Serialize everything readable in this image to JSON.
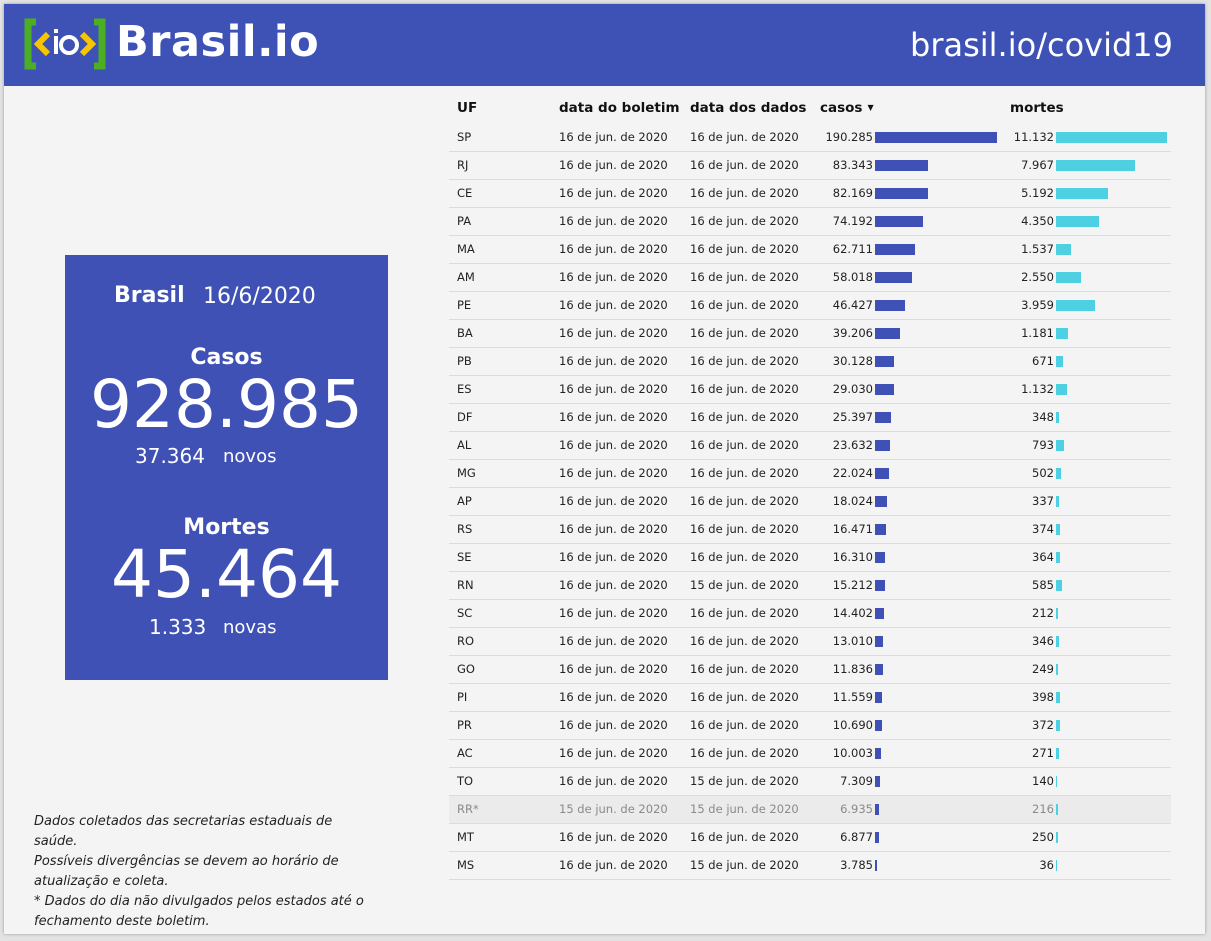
{
  "header": {
    "logo_text": "Brasil.io",
    "site_url": "brasil.io/covid19",
    "colors": {
      "brand": "#3e51b5",
      "logo_yellow": "#f7c600",
      "logo_green": "#4caf23"
    }
  },
  "summary": {
    "country": "Brasil",
    "date": "16/6/2020",
    "cases_label": "Casos",
    "cases_total": "928.985",
    "cases_new": "37.364",
    "cases_new_label": "novos",
    "deaths_label": "Mortes",
    "deaths_total": "45.464",
    "deaths_new": "1.333",
    "deaths_new_label": "novas"
  },
  "note": {
    "line1": "Dados coletados das secretarias estaduais de saúde.",
    "line2": "Possíveis divergências se devem ao horário de atualização e coleta.",
    "line3": "* Dados do dia não divulgados pelos estados até o fechamento deste boletim."
  },
  "table": {
    "headers": {
      "uf": "UF",
      "data_boletim": "data do boletim",
      "data_dados": "data dos dados",
      "casos": "casos",
      "mortes": "mortes"
    },
    "sort_indicator": "▼",
    "bar_colors": {
      "casos": "#3f51b5",
      "mortes": "#4dd0e1"
    },
    "rows": [
      {
        "uf": "SP",
        "boletim": "16 de jun. de 2020",
        "dados": "16 de jun. de 2020",
        "casos": "190.285",
        "mortes": "11.132",
        "casos_value": 190285,
        "mortes_value": 11132
      },
      {
        "uf": "RJ",
        "boletim": "16 de jun. de 2020",
        "dados": "16 de jun. de 2020",
        "casos": "83.343",
        "mortes": "7.967",
        "casos_value": 83343,
        "mortes_value": 7967
      },
      {
        "uf": "CE",
        "boletim": "16 de jun. de 2020",
        "dados": "16 de jun. de 2020",
        "casos": "82.169",
        "mortes": "5.192",
        "casos_value": 82169,
        "mortes_value": 5192
      },
      {
        "uf": "PA",
        "boletim": "16 de jun. de 2020",
        "dados": "16 de jun. de 2020",
        "casos": "74.192",
        "mortes": "4.350",
        "casos_value": 74192,
        "mortes_value": 4350
      },
      {
        "uf": "MA",
        "boletim": "16 de jun. de 2020",
        "dados": "16 de jun. de 2020",
        "casos": "62.711",
        "mortes": "1.537",
        "casos_value": 62711,
        "mortes_value": 1537
      },
      {
        "uf": "AM",
        "boletim": "16 de jun. de 2020",
        "dados": "16 de jun. de 2020",
        "casos": "58.018",
        "mortes": "2.550",
        "casos_value": 58018,
        "mortes_value": 2550
      },
      {
        "uf": "PE",
        "boletim": "16 de jun. de 2020",
        "dados": "16 de jun. de 2020",
        "casos": "46.427",
        "mortes": "3.959",
        "casos_value": 46427,
        "mortes_value": 3959
      },
      {
        "uf": "BA",
        "boletim": "16 de jun. de 2020",
        "dados": "16 de jun. de 2020",
        "casos": "39.206",
        "mortes": "1.181",
        "casos_value": 39206,
        "mortes_value": 1181
      },
      {
        "uf": "PB",
        "boletim": "16 de jun. de 2020",
        "dados": "16 de jun. de 2020",
        "casos": "30.128",
        "mortes": "671",
        "casos_value": 30128,
        "mortes_value": 671
      },
      {
        "uf": "ES",
        "boletim": "16 de jun. de 2020",
        "dados": "16 de jun. de 2020",
        "casos": "29.030",
        "mortes": "1.132",
        "casos_value": 29030,
        "mortes_value": 1132
      },
      {
        "uf": "DF",
        "boletim": "16 de jun. de 2020",
        "dados": "16 de jun. de 2020",
        "casos": "25.397",
        "mortes": "348",
        "casos_value": 25397,
        "mortes_value": 348
      },
      {
        "uf": "AL",
        "boletim": "16 de jun. de 2020",
        "dados": "16 de jun. de 2020",
        "casos": "23.632",
        "mortes": "793",
        "casos_value": 23632,
        "mortes_value": 793
      },
      {
        "uf": "MG",
        "boletim": "16 de jun. de 2020",
        "dados": "16 de jun. de 2020",
        "casos": "22.024",
        "mortes": "502",
        "casos_value": 22024,
        "mortes_value": 502
      },
      {
        "uf": "AP",
        "boletim": "16 de jun. de 2020",
        "dados": "16 de jun. de 2020",
        "casos": "18.024",
        "mortes": "337",
        "casos_value": 18024,
        "mortes_value": 337
      },
      {
        "uf": "RS",
        "boletim": "16 de jun. de 2020",
        "dados": "16 de jun. de 2020",
        "casos": "16.471",
        "mortes": "374",
        "casos_value": 16471,
        "mortes_value": 374
      },
      {
        "uf": "SE",
        "boletim": "16 de jun. de 2020",
        "dados": "16 de jun. de 2020",
        "casos": "16.310",
        "mortes": "364",
        "casos_value": 16310,
        "mortes_value": 364
      },
      {
        "uf": "RN",
        "boletim": "16 de jun. de 2020",
        "dados": "15 de jun. de 2020",
        "casos": "15.212",
        "mortes": "585",
        "casos_value": 15212,
        "mortes_value": 585
      },
      {
        "uf": "SC",
        "boletim": "16 de jun. de 2020",
        "dados": "16 de jun. de 2020",
        "casos": "14.402",
        "mortes": "212",
        "casos_value": 14402,
        "mortes_value": 212
      },
      {
        "uf": "RO",
        "boletim": "16 de jun. de 2020",
        "dados": "16 de jun. de 2020",
        "casos": "13.010",
        "mortes": "346",
        "casos_value": 13010,
        "mortes_value": 346
      },
      {
        "uf": "GO",
        "boletim": "16 de jun. de 2020",
        "dados": "16 de jun. de 2020",
        "casos": "11.836",
        "mortes": "249",
        "casos_value": 11836,
        "mortes_value": 249
      },
      {
        "uf": "PI",
        "boletim": "16 de jun. de 2020",
        "dados": "16 de jun. de 2020",
        "casos": "11.559",
        "mortes": "398",
        "casos_value": 11559,
        "mortes_value": 398
      },
      {
        "uf": "PR",
        "boletim": "16 de jun. de 2020",
        "dados": "16 de jun. de 2020",
        "casos": "10.690",
        "mortes": "372",
        "casos_value": 10690,
        "mortes_value": 372
      },
      {
        "uf": "AC",
        "boletim": "16 de jun. de 2020",
        "dados": "16 de jun. de 2020",
        "casos": "10.003",
        "mortes": "271",
        "casos_value": 10003,
        "mortes_value": 271
      },
      {
        "uf": "TO",
        "boletim": "16 de jun. de 2020",
        "dados": "15 de jun. de 2020",
        "casos": "7.309",
        "mortes": "140",
        "casos_value": 7309,
        "mortes_value": 140
      },
      {
        "uf": "RR*",
        "boletim": "15 de jun. de 2020",
        "dados": "15 de jun. de 2020",
        "casos": "6.935",
        "mortes": "216",
        "casos_value": 6935,
        "mortes_value": 216,
        "faded": true
      },
      {
        "uf": "MT",
        "boletim": "16 de jun. de 2020",
        "dados": "16 de jun. de 2020",
        "casos": "6.877",
        "mortes": "250",
        "casos_value": 6877,
        "mortes_value": 250
      },
      {
        "uf": "MS",
        "boletim": "16 de jun. de 2020",
        "dados": "15 de jun. de 2020",
        "casos": "3.785",
        "mortes": "36",
        "casos_value": 3785,
        "mortes_value": 36
      }
    ]
  }
}
